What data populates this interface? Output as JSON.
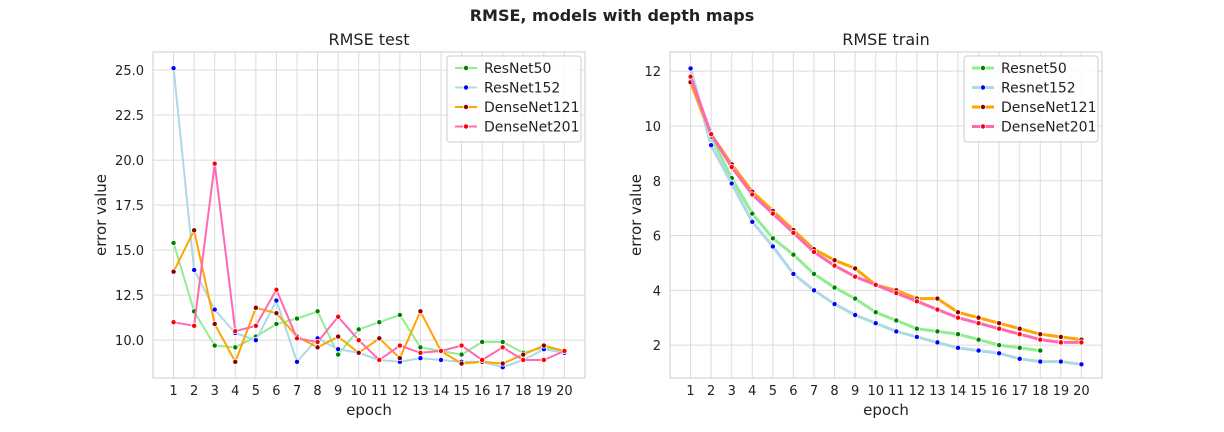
{
  "figure": {
    "suptitle": "RMSE, models with depth maps"
  },
  "chart_data": [
    {
      "type": "line",
      "title": "RMSE test",
      "xlabel": "epoch",
      "ylabel": "error value",
      "x": [
        1,
        2,
        3,
        4,
        5,
        6,
        7,
        8,
        9,
        10,
        11,
        12,
        13,
        14,
        15,
        16,
        17,
        18,
        19,
        20
      ],
      "xlim": [
        0,
        21
      ],
      "ylim": [
        7.9,
        26.0
      ],
      "yticks": [
        10.0,
        12.5,
        15.0,
        17.5,
        20.0,
        22.5,
        25.0
      ],
      "ytick_labels": [
        "10.0",
        "12.5",
        "15.0",
        "17.5",
        "20.0",
        "22.5",
        "25.0"
      ],
      "grid": true,
      "legend_position": "top-right",
      "series": [
        {
          "name": "ResNet50",
          "line_color": "#90ee90",
          "marker_color": "#008000",
          "line_width": 2,
          "values": [
            15.4,
            11.6,
            9.7,
            9.6,
            10.2,
            10.9,
            11.2,
            11.6,
            9.2,
            10.6,
            11.0,
            11.4,
            9.6,
            9.4,
            9.2,
            9.9,
            9.9,
            9.3,
            9.6,
            9.3
          ]
        },
        {
          "name": "ResNet152",
          "line_color": "#add8e6",
          "marker_color": "#0000ff",
          "line_width": 2,
          "values": [
            25.1,
            13.9,
            11.7,
            10.4,
            10.0,
            12.2,
            8.8,
            10.1,
            9.5,
            9.3,
            8.9,
            8.8,
            9.0,
            8.9,
            8.8,
            8.8,
            8.5,
            8.9,
            9.5,
            9.3
          ]
        },
        {
          "name": "DenseNet121",
          "line_color": "#ffa500",
          "marker_color": "#8b0000",
          "line_width": 2,
          "values": [
            13.8,
            16.1,
            10.9,
            8.8,
            11.8,
            11.5,
            10.2,
            9.6,
            10.2,
            9.3,
            10.1,
            9.0,
            11.6,
            9.4,
            8.7,
            8.8,
            8.7,
            9.2,
            9.7,
            9.4
          ]
        },
        {
          "name": "DenseNet201",
          "line_color": "#ff69b4",
          "marker_color": "#ff0000",
          "line_width": 2,
          "values": [
            11.0,
            10.8,
            19.8,
            10.5,
            10.8,
            12.8,
            10.1,
            9.9,
            11.3,
            10.0,
            8.9,
            9.7,
            9.3,
            9.4,
            9.7,
            8.9,
            9.6,
            8.9,
            8.9,
            9.4
          ]
        }
      ]
    },
    {
      "type": "line",
      "title": "RMSE train",
      "xlabel": "epoch",
      "ylabel": "error value",
      "x": [
        1,
        2,
        3,
        4,
        5,
        6,
        7,
        8,
        9,
        10,
        11,
        12,
        13,
        14,
        15,
        16,
        17,
        18,
        19,
        20
      ],
      "xlim": [
        0,
        21
      ],
      "ylim": [
        0.8,
        12.7
      ],
      "yticks": [
        2,
        4,
        6,
        8,
        10,
        12
      ],
      "ytick_labels": [
        "2",
        "4",
        "6",
        "8",
        "10",
        "12"
      ],
      "grid": true,
      "legend_position": "top-right",
      "series": [
        {
          "name": "Resnet50",
          "line_color": "#90ee90",
          "marker_color": "#008000",
          "line_width": 3,
          "values": [
            11.6,
            9.6,
            8.1,
            6.8,
            5.9,
            5.3,
            4.6,
            4.1,
            3.7,
            3.2,
            2.9,
            2.6,
            2.5,
            2.4,
            2.2,
            2.0,
            1.9,
            1.8,
            null,
            null
          ]
        },
        {
          "name": "Resnet152",
          "line_color": "#add8e6",
          "marker_color": "#0000ff",
          "line_width": 3,
          "values": [
            12.1,
            9.3,
            7.9,
            6.5,
            5.6,
            4.6,
            4.0,
            3.5,
            3.1,
            2.8,
            2.5,
            2.3,
            2.1,
            1.9,
            1.8,
            1.7,
            1.5,
            1.4,
            1.4,
            1.3
          ]
        },
        {
          "name": "DenseNet121",
          "line_color": "#ffa500",
          "marker_color": "#8b0000",
          "line_width": 3,
          "values": [
            11.6,
            9.7,
            8.6,
            7.6,
            6.9,
            6.2,
            5.5,
            5.1,
            4.8,
            4.2,
            4.0,
            3.7,
            3.7,
            3.2,
            3.0,
            2.8,
            2.6,
            2.4,
            2.3,
            2.2
          ]
        },
        {
          "name": "DenseNet201",
          "line_color": "#ff69b4",
          "marker_color": "#ff0000",
          "line_width": 3,
          "values": [
            11.8,
            9.7,
            8.5,
            7.5,
            6.8,
            6.1,
            5.4,
            4.9,
            4.5,
            4.2,
            3.9,
            3.6,
            3.3,
            3.0,
            2.8,
            2.6,
            2.4,
            2.2,
            2.1,
            2.1
          ]
        }
      ]
    }
  ]
}
